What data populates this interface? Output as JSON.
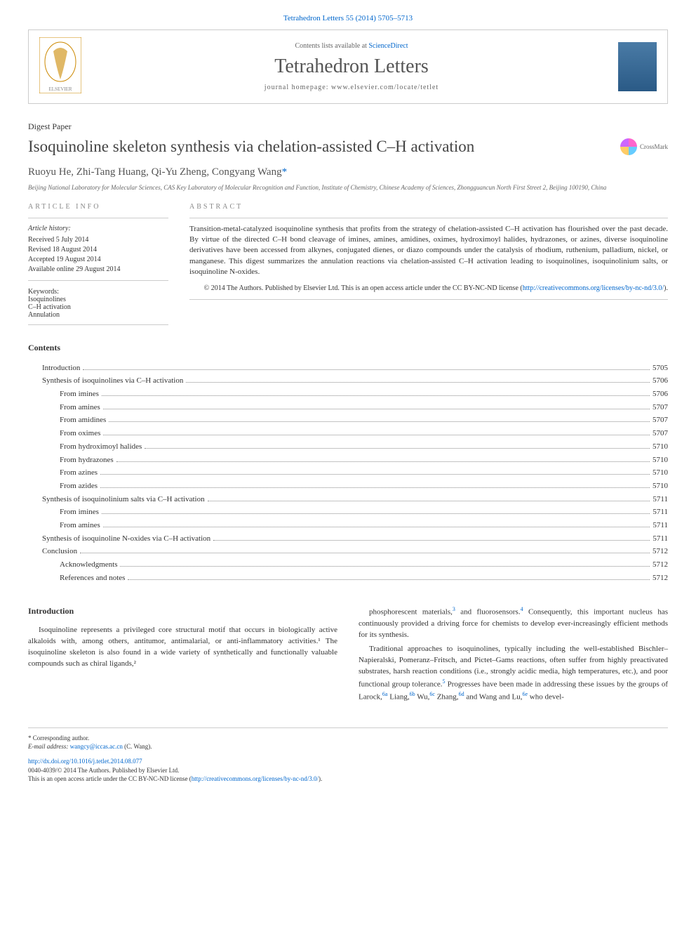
{
  "citation": "Tetrahedron Letters 55 (2014) 5705–5713",
  "header": {
    "contents_line_pre": "Contents lists available at ",
    "contents_link": "ScienceDirect",
    "journal": "Tetrahedron Letters",
    "homepage_pre": "journal homepage: ",
    "homepage": "www.elsevier.com/locate/tetlet",
    "cover_title": "Tetrahedron Letters"
  },
  "paper_type": "Digest Paper",
  "title": "Isoquinoline skeleton synthesis via chelation-assisted C–H activation",
  "crossmark": "CrossMark",
  "authors": "Ruoyu He, Zhi-Tang Huang, Qi-Yu Zheng, Congyang Wang",
  "corr_mark": "*",
  "affiliation": "Beijing National Laboratory for Molecular Sciences, CAS Key Laboratory of Molecular Recognition and Function, Institute of Chemistry, Chinese Academy of Sciences, Zhongguancun North First Street 2, Beijing 100190, China",
  "article_info": {
    "label": "ARTICLE INFO",
    "history_label": "Article history:",
    "received": "Received 5 July 2014",
    "revised": "Revised 18 August 2014",
    "accepted": "Accepted 19 August 2014",
    "online": "Available online 29 August 2014",
    "keywords_label": "Keywords:",
    "kw1": "Isoquinolines",
    "kw2": "C–H activation",
    "kw3": "Annulation"
  },
  "abstract": {
    "label": "ABSTRACT",
    "text": "Transition-metal-catalyzed isoquinoline synthesis that profits from the strategy of chelation-assisted C–H activation has flourished over the past decade. By virtue of the directed C–H bond cleavage of imines, amines, amidines, oximes, hydroximoyl halides, hydrazones, or azines, diverse isoquinoline derivatives have been accessed from alkynes, conjugated dienes, or diazo compounds under the catalysis of rhodium, ruthenium, palladium, nickel, or manganese. This digest summarizes the annulation reactions via chelation-assisted C–H activation leading to isoquinolines, isoquinolinium salts, or isoquinoline N-oxides.",
    "copyright": "© 2014 The Authors. Published by Elsevier Ltd. This is an open access article under the CC BY-NC-ND license (",
    "cc_link": "http://creativecommons.org/licenses/by-nc-nd/3.0/",
    "cc_close": ")."
  },
  "contents_heading": "Contents",
  "toc": [
    {
      "label": "Introduction",
      "page": "5705",
      "indent": 1
    },
    {
      "label": "Synthesis of isoquinolines via C–H activation",
      "page": "5706",
      "indent": 1
    },
    {
      "label": "From imines",
      "page": "5706",
      "indent": 2
    },
    {
      "label": "From amines",
      "page": "5707",
      "indent": 2
    },
    {
      "label": "From amidines",
      "page": "5707",
      "indent": 2
    },
    {
      "label": "From oximes",
      "page": "5707",
      "indent": 2
    },
    {
      "label": "From hydroximoyl halides",
      "page": "5710",
      "indent": 2
    },
    {
      "label": "From hydrazones",
      "page": "5710",
      "indent": 2
    },
    {
      "label": "From azines",
      "page": "5710",
      "indent": 2
    },
    {
      "label": "From azides",
      "page": "5710",
      "indent": 2
    },
    {
      "label": "Synthesis of isoquinolinium salts via C–H activation",
      "page": "5711",
      "indent": 1
    },
    {
      "label": "From imines",
      "page": "5711",
      "indent": 2
    },
    {
      "label": "From amines",
      "page": "5711",
      "indent": 2
    },
    {
      "label": "Synthesis of isoquinoline N-oxides via C–H activation",
      "page": "5711",
      "indent": 1
    },
    {
      "label": "Conclusion",
      "page": "5712",
      "indent": 1
    },
    {
      "label": "Acknowledgments",
      "page": "5712",
      "indent": 2
    },
    {
      "label": "References and notes",
      "page": "5712",
      "indent": 2
    }
  ],
  "body": {
    "intro_heading": "Introduction",
    "p1": "Isoquinoline represents a privileged core structural motif that occurs in biologically active alkaloids with, among others, antitumor, antimalarial, or anti-inflammatory activities.¹ The isoquinoline skeleton is also found in a wide variety of synthetically and functionally valuable compounds such as chiral ligands,²",
    "p2a": "phosphorescent materials,",
    "p2b": " and fluorosensors.",
    "p2c": " Consequently, this important nucleus has continuously provided a driving force for chemists to develop ever-increasingly efficient methods for its synthesis.",
    "p3a": "Traditional approaches to isoquinolines, typically including the well-established Bischler–Napieralski, Pomeranz–Fritsch, and Pictet–Gams reactions, often suffer from highly preactivated substrates, harsh reaction conditions (i.e., strongly acidic media, high temperatures, etc.), and poor functional group tolerance.",
    "p3b": " Progresses have been made in addressing these issues by the groups of Larock,",
    "p3c": " Liang,",
    "p3d": " Wu,",
    "p3e": " Zhang,",
    "p3f": " and Wang and Lu,",
    "p3g": " who devel-",
    "ref3": "3",
    "ref4": "4",
    "ref5": "5",
    "ref6a": "6a",
    "ref6b": "6b",
    "ref6c": "6c",
    "ref6d": "6d",
    "ref6e": "6e"
  },
  "footer": {
    "corr": "* Corresponding author.",
    "email_label": "E-mail address: ",
    "email": "wangcy@iccas.ac.cn",
    "email_name": " (C. Wang).",
    "doi": "http://dx.doi.org/10.1016/j.tetlet.2014.08.077",
    "issn": "0040-4039/© 2014 The Authors. Published by Elsevier Ltd.",
    "oa": "This is an open access article under the CC BY-NC-ND license (",
    "oa_link": "http://creativecommons.org/licenses/by-nc-nd/3.0/",
    "oa_close": ")."
  },
  "colors": {
    "link": "#0066cc",
    "border": "#cccccc",
    "text": "#333333",
    "muted": "#666666"
  }
}
